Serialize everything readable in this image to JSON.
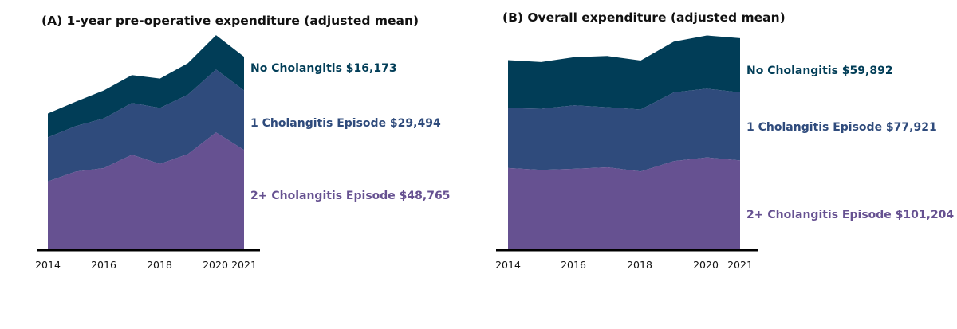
{
  "colors": {
    "no_cholangitis": "#013d57",
    "one_episode": "#2f4b7c",
    "two_plus": "#665191",
    "axis": "#000000"
  },
  "chart_data": [
    {
      "type": "area",
      "stacked": true,
      "title": "(A) 1-year pre-operative expenditure (adjusted mean)",
      "x": [
        2014,
        2015,
        2016,
        2017,
        2018,
        2019,
        2020,
        2021
      ],
      "x_tick_labels": [
        "2014",
        "2016",
        "2018",
        "2020",
        "2021"
      ],
      "ylim": [
        0,
        152000
      ],
      "series": [
        {
          "name": "2+ Cholangitis Episode",
          "label": "2+ Cholangitis Episode $48,765",
          "values": [
            48000,
            55000,
            57500,
            67000,
            60500,
            67500,
            83000,
            70500
          ]
        },
        {
          "name": "1 Cholangitis Episode",
          "label": "1 Cholangitis Episode $29,494",
          "values": [
            31500,
            32500,
            35500,
            37000,
            40000,
            42500,
            45000,
            42500
          ]
        },
        {
          "name": "No Cholangitis",
          "label": "No Cholangitis $16,173",
          "values": [
            17000,
            17500,
            20000,
            20000,
            21000,
            22500,
            24500,
            24000
          ]
        }
      ]
    },
    {
      "type": "area",
      "stacked": true,
      "title": "(B) Overall expenditure (adjusted mean)",
      "x": [
        2014,
        2015,
        2016,
        2017,
        2018,
        2019,
        2020,
        2021
      ],
      "x_tick_labels": [
        "2014",
        "2016",
        "2018",
        "2020",
        "2021"
      ],
      "ylim": [
        0,
        280000
      ],
      "series": [
        {
          "name": "2+ Cholangitis Episode",
          "label": "2+ Cholangitis Episode $101,204",
          "values": [
            106000,
            103500,
            105000,
            107000,
            101500,
            115000,
            120000,
            116000
          ]
        },
        {
          "name": "1 Cholangitis Episode",
          "label": "1 Cholangitis Episode $77,921",
          "values": [
            79000,
            80500,
            83500,
            79000,
            81500,
            90500,
            90500,
            89500
          ]
        },
        {
          "name": "No Cholangitis",
          "label": "No Cholangitis $59,892",
          "values": [
            63000,
            61500,
            63500,
            67500,
            64500,
            67000,
            70000,
            71500
          ]
        }
      ]
    }
  ]
}
